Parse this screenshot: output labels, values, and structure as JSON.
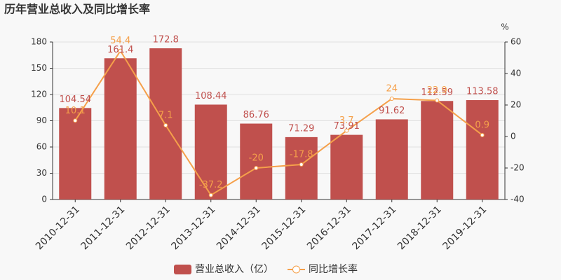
{
  "chart_data": {
    "type": "bar",
    "title": "历年营业总收入及同比增长率",
    "y2_unit": "%",
    "categories": [
      "2010-12-31",
      "2011-12-31",
      "2012-12-31",
      "2013-12-31",
      "2014-12-31",
      "2015-12-31",
      "2016-12-31",
      "2017-12-31",
      "2018-12-31",
      "2019-12-31"
    ],
    "series": [
      {
        "name": "营业总收入（亿）",
        "type": "bar",
        "color": "#c0504d",
        "values": [
          104.54,
          161.4,
          172.8,
          108.44,
          86.76,
          71.29,
          73.91,
          91.62,
          112.59,
          113.58
        ]
      },
      {
        "name": "同比增长率",
        "type": "line",
        "axis": "y2",
        "color": "#f5a04a",
        "values": [
          10.1,
          54.4,
          7.1,
          -37.2,
          -20,
          -17.8,
          3.7,
          24,
          22.9,
          0.9
        ]
      }
    ],
    "ylim": [
      0,
      180
    ],
    "yticks": [
      0,
      30,
      60,
      90,
      120,
      150,
      180
    ],
    "y2lim": [
      -40,
      60
    ],
    "y2ticks": [
      -40,
      -20,
      0,
      20,
      40,
      60
    ],
    "grid": true
  }
}
